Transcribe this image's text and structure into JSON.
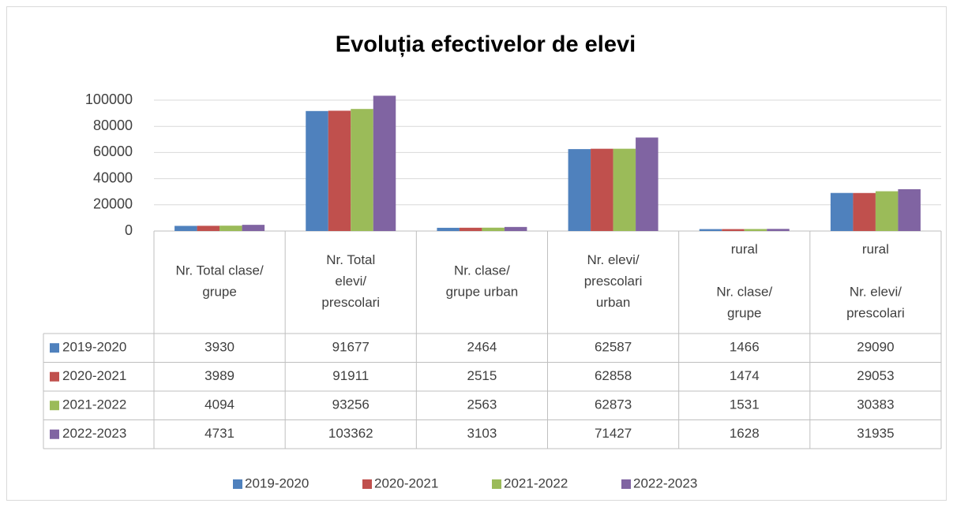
{
  "chart_data": {
    "type": "bar",
    "title": "Evoluția efectivelor de elevi",
    "categories": [
      "Nr. Total clase/\ngrupe",
      "Nr. Total\nelevi/\nprescolari",
      "Nr. clase/\ngrupe urban",
      "Nr. elevi/\nprescolari\nurban",
      "rural\n\nNr.  clase/\ngrupe",
      "rural\n\nNr. elevi/\nprescolari"
    ],
    "series": [
      {
        "name": "2019-2020",
        "color": "#4f81bd",
        "values": [
          3930,
          91677,
          2464,
          62587,
          1466,
          29090
        ]
      },
      {
        "name": "2020-2021",
        "color": "#c0504d",
        "values": [
          3989,
          91911,
          2515,
          62858,
          1474,
          29053
        ]
      },
      {
        "name": "2021-2022",
        "color": "#9bbb59",
        "values": [
          4094,
          93256,
          2563,
          62873,
          1531,
          30383
        ]
      },
      {
        "name": "2022-2023",
        "color": "#8064a2",
        "values": [
          4731,
          103362,
          3103,
          71427,
          1628,
          31935
        ]
      }
    ],
    "ylim": [
      0,
      100000
    ],
    "yticks": [
      0,
      20000,
      40000,
      60000,
      80000,
      100000
    ],
    "grid": true,
    "data_table": true,
    "legend": "bottom"
  }
}
